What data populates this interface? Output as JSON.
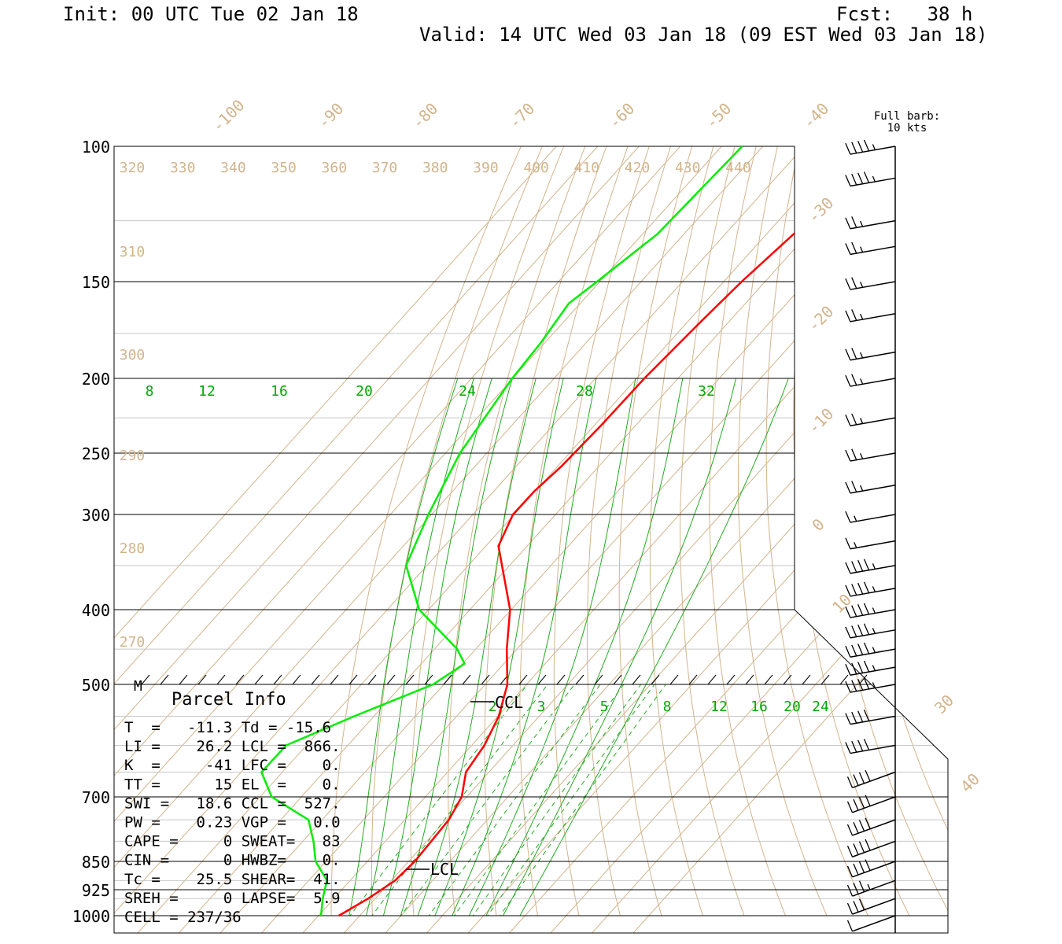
{
  "header": {
    "init": "Init: 00 UTC Tue 02 Jan 18",
    "fcst": "Fcst:   38 h",
    "valid": "Valid: 14 UTC Wed 03 Jan 18 (09 EST Wed 03 Jan 18)"
  },
  "barb_legend": {
    "line1": "Full barb:",
    "line2": "10 kts"
  },
  "parcel_info": {
    "title": "Parcel Info",
    "rows": [
      [
        "T  =   -11.3 Td = -15.6"
      ],
      [
        "LI =    26.2 LCL =  866."
      ],
      [
        "K  =     -41 LFC =    0."
      ],
      [
        "TT =      15 EL  =    0."
      ],
      [
        "SWI =   18.6 CCL =  527."
      ],
      [
        "PW =    0.23 VGP =   0.0"
      ],
      [
        "CAPE =     0 SWEAT=   83"
      ],
      [
        "CIN =      0 HWBZ=    0."
      ],
      [
        "Tc =    25.5 SHEAR=  41."
      ],
      [
        "SREH =     0 LAPSE=  5.9"
      ],
      [
        "CELL = 237/36"
      ]
    ]
  },
  "annotations": {
    "ccl": "CCL",
    "lcl": "LCL",
    "m": "M"
  },
  "chart_data": {
    "type": "line",
    "pressure_ticks": [
      "100",
      "150",
      "200",
      "250",
      "300",
      "400",
      "500",
      "700",
      "850",
      "925",
      "1000"
    ],
    "pressure_levels": [
      100,
      150,
      200,
      250,
      300,
      400,
      500,
      700,
      850,
      925,
      1000
    ],
    "isotherm_labels": [
      "-100",
      "-90",
      "-80",
      "-70",
      "-60",
      "-50",
      "-40",
      "-30",
      "-20",
      "-10",
      "0",
      "10",
      "30",
      "40"
    ],
    "theta_labels_top": [
      "320",
      "330",
      "340",
      "350",
      "360",
      "370",
      "380",
      "390",
      "400",
      "410",
      "420",
      "430",
      "440"
    ],
    "theta_labels_left": [
      "310",
      "300",
      "290",
      "280",
      "270"
    ],
    "theta_e_labels": [
      "8",
      "12",
      "16",
      "20",
      "24",
      "28",
      "32"
    ],
    "mixing_ratio_labels": [
      "2",
      "3",
      "5",
      "8",
      "12",
      "16",
      "20",
      "24"
    ],
    "series": [
      {
        "name": "temperature",
        "color": "#ff0000",
        "pressure": [
          100,
          110,
          130,
          150,
          170,
          200,
          230,
          260,
          280,
          300,
          330,
          400,
          450,
          500,
          550,
          600,
          650,
          700,
          750,
          800,
          850,
          900,
          950,
          1000
        ],
        "values": [
          -50,
          -52,
          -53,
          -55,
          -56,
          -57,
          -57,
          -57.5,
          -58.5,
          -58.5,
          -55,
          -38,
          -30,
          -22,
          -17,
          -14,
          -12.5,
          -8,
          -6,
          -5.5,
          -5,
          -5.5,
          -8,
          -11.3
        ]
      },
      {
        "name": "dewpoint",
        "color": "#00ee00",
        "pressure": [
          100,
          130,
          150,
          160,
          180,
          200,
          250,
          300,
          350,
          400,
          450,
          470,
          500,
          550,
          600,
          650,
          700,
          750,
          800,
          850,
          900,
          950,
          1000
        ],
        "values": [
          -85,
          -86,
          -90,
          -92,
          -90,
          -89,
          -85,
          -79,
          -73,
          -60,
          -42,
          -37,
          -40,
          -52,
          -62,
          -62,
          -54,
          -40,
          -34,
          -29,
          -22,
          -19,
          -15.6
        ]
      }
    ],
    "wind_barbs": [
      {
        "pressure": 100,
        "speed_kt": 45
      },
      {
        "pressure": 110,
        "speed_kt": 45
      },
      {
        "pressure": 125,
        "speed_kt": 25
      },
      {
        "pressure": 135,
        "speed_kt": 25
      },
      {
        "pressure": 150,
        "speed_kt": 25
      },
      {
        "pressure": 165,
        "speed_kt": 25
      },
      {
        "pressure": 185,
        "speed_kt": 25
      },
      {
        "pressure": 200,
        "speed_kt": 25
      },
      {
        "pressure": 225,
        "speed_kt": 25
      },
      {
        "pressure": 250,
        "speed_kt": 25
      },
      {
        "pressure": 275,
        "speed_kt": 25
      },
      {
        "pressure": 300,
        "speed_kt": 15
      },
      {
        "pressure": 325,
        "speed_kt": 15
      },
      {
        "pressure": 350,
        "speed_kt": 45
      },
      {
        "pressure": 375,
        "speed_kt": 45
      },
      {
        "pressure": 400,
        "speed_kt": 45
      },
      {
        "pressure": 425,
        "speed_kt": 45
      },
      {
        "pressure": 450,
        "speed_kt": 45
      },
      {
        "pressure": 475,
        "speed_kt": 45
      },
      {
        "pressure": 500,
        "speed_kt": 45
      },
      {
        "pressure": 550,
        "speed_kt": 40
      },
      {
        "pressure": 600,
        "speed_kt": 40
      },
      {
        "pressure": 650,
        "speed_kt": 40
      },
      {
        "pressure": 700,
        "speed_kt": 40
      },
      {
        "pressure": 750,
        "speed_kt": 40
      },
      {
        "pressure": 800,
        "speed_kt": 40
      },
      {
        "pressure": 850,
        "speed_kt": 40
      },
      {
        "pressure": 900,
        "speed_kt": 35
      },
      {
        "pressure": 950,
        "speed_kt": 30
      },
      {
        "pressure": 1000,
        "speed_kt": 10
      }
    ]
  }
}
